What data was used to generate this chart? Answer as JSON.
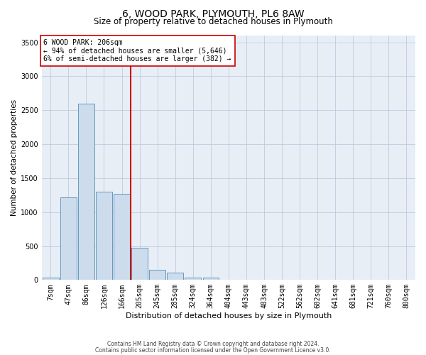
{
  "title": "6, WOOD PARK, PLYMOUTH, PL6 8AW",
  "subtitle": "Size of property relative to detached houses in Plymouth",
  "xlabel": "Distribution of detached houses by size in Plymouth",
  "ylabel": "Number of detached properties",
  "bar_color": "#ccdcec",
  "bar_edge_color": "#6699bb",
  "bg_color": "#e8eef6",
  "categories": [
    "7sqm",
    "47sqm",
    "86sqm",
    "126sqm",
    "166sqm",
    "205sqm",
    "245sqm",
    "285sqm",
    "324sqm",
    "364sqm",
    "404sqm",
    "443sqm",
    "483sqm",
    "522sqm",
    "562sqm",
    "602sqm",
    "641sqm",
    "681sqm",
    "721sqm",
    "760sqm",
    "800sqm"
  ],
  "values": [
    30,
    1220,
    2600,
    1300,
    1270,
    470,
    150,
    110,
    30,
    30,
    0,
    0,
    0,
    0,
    0,
    0,
    0,
    0,
    0,
    0,
    0
  ],
  "ylim": [
    0,
    3600
  ],
  "yticks": [
    0,
    500,
    1000,
    1500,
    2000,
    2500,
    3000,
    3500
  ],
  "vline_x": 4.5,
  "vline_color": "#cc0000",
  "annotation_title": "6 WOOD PARK: 206sqm",
  "annotation_line1": "← 94% of detached houses are smaller (5,646)",
  "annotation_line2": "6% of semi-detached houses are larger (382) →",
  "annotation_box_color": "#cc0000",
  "footnote1": "Contains HM Land Registry data © Crown copyright and database right 2024.",
  "footnote2": "Contains public sector information licensed under the Open Government Licence v3.0.",
  "title_fontsize": 10,
  "subtitle_fontsize": 8.5,
  "xlabel_fontsize": 8,
  "ylabel_fontsize": 7.5,
  "tick_fontsize": 7,
  "annot_fontsize": 7,
  "footnote_fontsize": 5.5
}
